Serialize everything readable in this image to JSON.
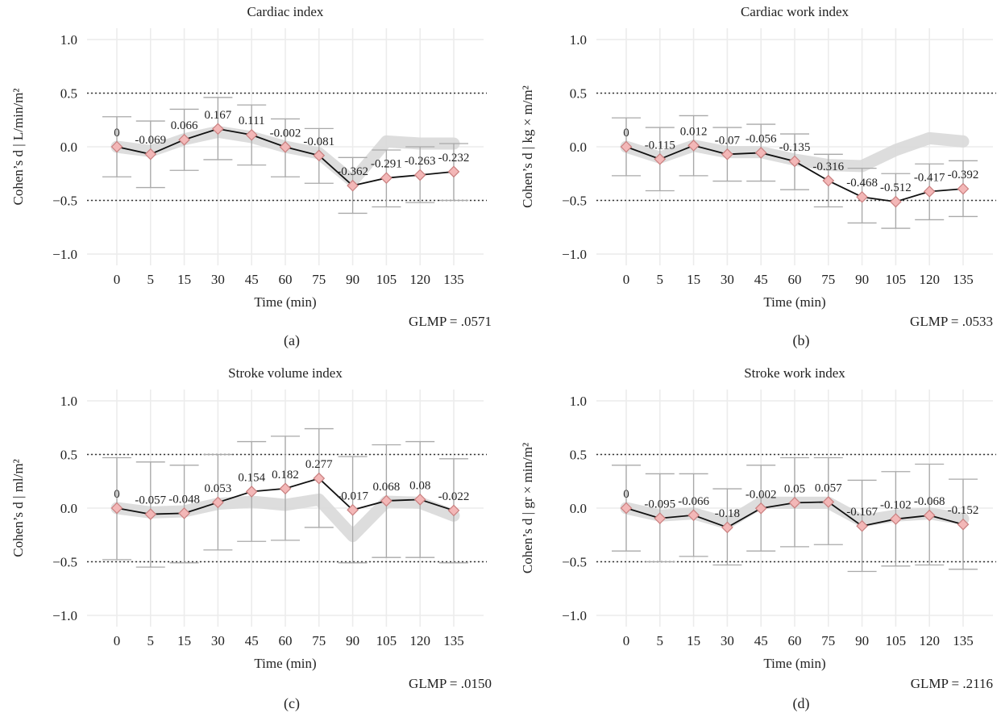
{
  "figure": {
    "x_ticks": [
      "0",
      "5",
      "15",
      "30",
      "45",
      "60",
      "75",
      "90",
      "105",
      "120",
      "135"
    ],
    "y_ticks": [
      "1.0",
      "0.5",
      "0.0",
      "−0.5",
      "−1.0"
    ],
    "xlabel": "Time (min)",
    "colors": {
      "line": "#111111",
      "marker_fill": "#f3b7b7",
      "marker_stroke": "#c98080",
      "band": "#d9d9d9",
      "errorbar": "#a9a9a9",
      "grid": "#ececec",
      "reference_line": "#333333"
    }
  },
  "chart_data": [
    {
      "type": "line",
      "panel_label": "(a)",
      "title": "Cardiac index",
      "xlabel": "Time (min)",
      "ylabel": "Cohen’s d | L/min/m²",
      "categories": [
        "0",
        "5",
        "15",
        "30",
        "45",
        "60",
        "75",
        "90",
        "105",
        "120",
        "135"
      ],
      "values": [
        0,
        -0.069,
        0.066,
        0.167,
        0.111,
        -0.002,
        -0.081,
        -0.362,
        -0.291,
        -0.263,
        -0.232
      ],
      "value_labels": [
        "0",
        "-0.069",
        "0.066",
        "0.167",
        "0.111",
        "-0.002",
        "-0.081",
        "-0.362",
        "-0.291",
        "-0.263",
        "-0.232"
      ],
      "ci_lower": [
        -0.28,
        -0.38,
        -0.22,
        -0.12,
        -0.17,
        -0.28,
        -0.34,
        -0.62,
        -0.56,
        -0.52,
        -0.5
      ],
      "ci_upper": [
        0.28,
        0.24,
        0.35,
        0.46,
        0.39,
        0.26,
        0.17,
        -0.1,
        -0.03,
        0.0,
        0.03
      ],
      "band": [
        0,
        -0.04,
        0.07,
        0.14,
        0.09,
        0.0,
        -0.06,
        -0.32,
        0.05,
        0.03,
        0.03
      ],
      "reference_lines": [
        0.5,
        -0.5
      ],
      "ylim": [
        -1.1,
        1.1
      ],
      "annotation": "GLMP = .0571",
      "grid": true
    },
    {
      "type": "line",
      "panel_label": "(b)",
      "title": "Cardiac work index",
      "xlabel": "Time (min)",
      "ylabel": "Cohen’s d | kg × m/m²",
      "categories": [
        "0",
        "5",
        "15",
        "30",
        "45",
        "60",
        "75",
        "90",
        "105",
        "120",
        "135"
      ],
      "values": [
        0,
        -0.115,
        0.012,
        -0.07,
        -0.056,
        -0.135,
        -0.316,
        -0.468,
        -0.512,
        -0.417,
        -0.392
      ],
      "value_labels": [
        "0",
        "-0.115",
        "0.012",
        "-0.07",
        "-0.056",
        "-0.135",
        "-0.316",
        "-0.468",
        "-0.512",
        "-0.417",
        "-0.392"
      ],
      "ci_lower": [
        -0.27,
        -0.41,
        -0.27,
        -0.32,
        -0.32,
        -0.4,
        -0.56,
        -0.71,
        -0.76,
        -0.68,
        -0.65
      ],
      "ci_upper": [
        0.27,
        0.18,
        0.29,
        0.18,
        0.21,
        0.12,
        -0.07,
        -0.2,
        -0.25,
        -0.16,
        -0.13
      ],
      "band": [
        0,
        -0.1,
        0.01,
        -0.05,
        -0.05,
        -0.12,
        -0.17,
        -0.18,
        -0.03,
        0.08,
        0.05
      ],
      "reference_lines": [
        0.5,
        -0.5
      ],
      "ylim": [
        -1.1,
        1.1
      ],
      "annotation": "GLMP = .0533",
      "grid": true
    },
    {
      "type": "line",
      "panel_label": "(c)",
      "title": "Stroke volume index",
      "xlabel": "Time (min)",
      "ylabel": "Cohen’s d | ml/m²",
      "categories": [
        "0",
        "5",
        "15",
        "30",
        "45",
        "60",
        "75",
        "90",
        "105",
        "120",
        "135"
      ],
      "values": [
        0,
        -0.057,
        -0.048,
        0.053,
        0.154,
        0.182,
        0.277,
        -0.017,
        0.068,
        0.08,
        -0.022
      ],
      "value_labels": [
        "0",
        "-0.057",
        "-0.048",
        "0.053",
        "0.154",
        "0.182",
        "0.277",
        "-0.017",
        "0.068",
        "0.08",
        "-0.022"
      ],
      "ci_lower": [
        -0.48,
        -0.55,
        -0.51,
        -0.39,
        -0.31,
        -0.3,
        -0.18,
        -0.51,
        -0.46,
        -0.46,
        -0.51
      ],
      "ci_upper": [
        0.47,
        0.43,
        0.4,
        0.5,
        0.62,
        0.67,
        0.74,
        0.48,
        0.59,
        0.62,
        0.46
      ],
      "band": [
        0,
        -0.04,
        -0.03,
        0.04,
        0.06,
        0.03,
        0.08,
        -0.26,
        0.06,
        0.05,
        -0.07
      ],
      "reference_lines": [
        0.5,
        -0.5
      ],
      "ylim": [
        -1.1,
        1.1
      ],
      "annotation": "GLMP = .0150",
      "grid": true
    },
    {
      "type": "line",
      "panel_label": "(d)",
      "title": "Stroke work index",
      "xlabel": "Time (min)",
      "ylabel": "Cohen’s d | gr × min/m²",
      "categories": [
        "0",
        "5",
        "15",
        "30",
        "45",
        "60",
        "75",
        "90",
        "105",
        "120",
        "135"
      ],
      "values": [
        0,
        -0.095,
        -0.066,
        -0.18,
        -0.002,
        0.05,
        0.057,
        -0.167,
        -0.102,
        -0.068,
        -0.152
      ],
      "value_labels": [
        "0",
        "-0.095",
        "-0.066",
        "-0.18",
        "-0.002",
        "0.05",
        "0.057",
        "-0.167",
        "-0.102",
        "-0.068",
        "-0.152"
      ],
      "ci_lower": [
        -0.4,
        -0.5,
        -0.45,
        -0.53,
        -0.4,
        -0.36,
        -0.34,
        -0.59,
        -0.54,
        -0.53,
        -0.57
      ],
      "ci_upper": [
        0.4,
        0.32,
        0.32,
        0.18,
        0.4,
        0.47,
        0.47,
        0.26,
        0.34,
        0.41,
        0.27
      ],
      "band": [
        0,
        -0.07,
        -0.05,
        -0.14,
        0.05,
        0.05,
        0.05,
        -0.12,
        -0.07,
        -0.05,
        -0.1
      ],
      "reference_lines": [
        0.5,
        -0.5
      ],
      "ylim": [
        -1.1,
        1.1
      ],
      "annotation": "GLMP = .2116",
      "grid": true
    }
  ]
}
